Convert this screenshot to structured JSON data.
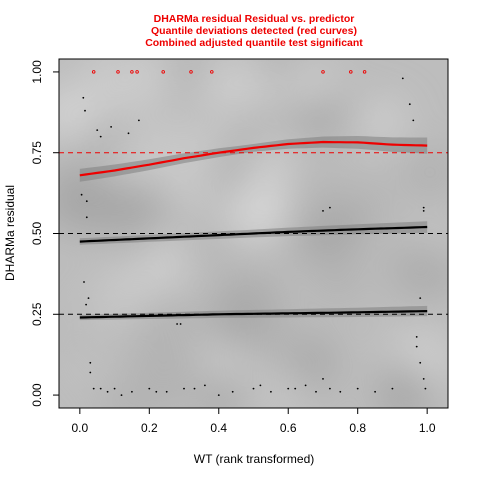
{
  "chart_data": {
    "type": "scatter",
    "title_lines": [
      "DHARMa residual Residual vs. predictor",
      "Quantile deviations detected (red curves)",
      "Combined adjusted quantile test significant"
    ],
    "xlabel": "WT (rank transformed)",
    "ylabel": "DHARMa residual",
    "xlim": [
      -0.06,
      1.06
    ],
    "ylim": [
      -0.04,
      1.04
    ],
    "xticks": [
      "0.0",
      "0.2",
      "0.4",
      "0.6",
      "0.8",
      "1.0"
    ],
    "yticks": [
      "0.00",
      "0.25",
      "0.50",
      "0.75",
      "1.00"
    ],
    "reference_lines": [
      {
        "y": 0.25,
        "color": "#000000"
      },
      {
        "y": 0.5,
        "color": "#000000"
      },
      {
        "y": 0.75,
        "color": "#ee0000"
      }
    ],
    "quantile_curves": [
      {
        "quantile": 0.25,
        "color": "#000000",
        "x": [
          0.0,
          0.2,
          0.4,
          0.6,
          0.8,
          1.0
        ],
        "y": [
          0.24,
          0.245,
          0.25,
          0.253,
          0.256,
          0.26
        ]
      },
      {
        "quantile": 0.5,
        "color": "#000000",
        "x": [
          0.0,
          0.2,
          0.4,
          0.6,
          0.8,
          1.0
        ],
        "y": [
          0.475,
          0.485,
          0.495,
          0.505,
          0.513,
          0.52
        ]
      },
      {
        "quantile": 0.75,
        "color": "#ee0000",
        "x": [
          0.0,
          0.1,
          0.2,
          0.3,
          0.4,
          0.5,
          0.6,
          0.7,
          0.8,
          0.9,
          1.0
        ],
        "y": [
          0.68,
          0.695,
          0.713,
          0.733,
          0.75,
          0.765,
          0.777,
          0.783,
          0.782,
          0.775,
          0.772
        ]
      }
    ],
    "outliers": {
      "color": "#ee0000",
      "y": 1.0,
      "x": [
        0.04,
        0.11,
        0.15,
        0.165,
        0.24,
        0.32,
        0.38,
        0.7,
        0.78,
        0.82
      ]
    },
    "points": {
      "color": "#000000",
      "x": [
        0.01,
        0.015,
        0.02,
        0.02,
        0.025,
        0.03,
        0.04,
        0.05,
        0.06,
        0.08,
        0.1,
        0.12,
        0.15,
        0.17,
        0.2,
        0.22,
        0.28,
        0.29,
        0.3,
        0.33,
        0.36,
        0.44,
        0.5,
        0.52,
        0.55,
        0.6,
        0.62,
        0.65,
        0.68,
        0.7,
        0.72,
        0.75,
        0.8,
        0.85,
        0.9,
        0.93,
        0.95,
        0.96,
        0.97,
        0.98,
        0.99,
        0.99,
        0.995,
        0.005,
        0.012,
        0.018,
        0.03,
        0.06,
        0.09,
        0.14,
        0.25,
        0.4,
        0.7,
        0.72,
        0.97,
        0.98,
        0.99
      ],
      "y": [
        0.92,
        0.88,
        0.6,
        0.55,
        0.3,
        0.1,
        0.02,
        0.82,
        0.8,
        0.01,
        0.02,
        0.0,
        0.01,
        0.85,
        0.02,
        0.01,
        0.22,
        0.22,
        0.02,
        0.02,
        0.03,
        0.01,
        0.02,
        0.03,
        0.01,
        0.02,
        0.02,
        0.03,
        0.01,
        0.57,
        0.58,
        0.01,
        0.02,
        0.01,
        0.02,
        0.98,
        0.9,
        0.85,
        0.15,
        0.1,
        0.05,
        0.57,
        0.02,
        0.62,
        0.35,
        0.28,
        0.07,
        0.02,
        0.83,
        0.81,
        0.01,
        0.0,
        0.05,
        0.02,
        0.18,
        0.3,
        0.58
      ]
    },
    "bands": [
      {
        "quantile": 0.25,
        "halfwidth": [
          0.008,
          0.012,
          0.016
        ]
      },
      {
        "quantile": 0.5,
        "halfwidth": [
          0.01,
          0.012,
          0.018
        ]
      },
      {
        "quantile": 0.75,
        "halfwidth": [
          0.02,
          0.012,
          0.025
        ]
      }
    ],
    "grid": false,
    "background": "grey density shading"
  }
}
